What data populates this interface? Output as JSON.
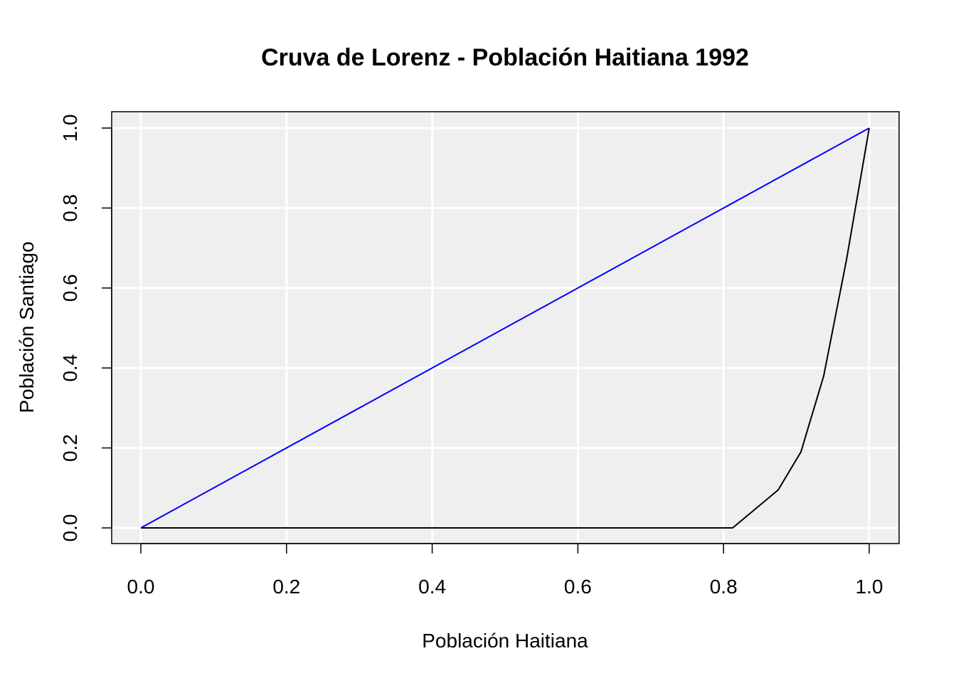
{
  "chart_data": {
    "type": "line",
    "title": "Cruva de Lorenz - Población Haitiana 1992",
    "xlabel": "Población Haitiana",
    "ylabel": "Población Santiago",
    "xlim": [
      0,
      1
    ],
    "ylim": [
      0,
      1
    ],
    "x_ticks": [
      "0.0",
      "0.2",
      "0.4",
      "0.6",
      "0.8",
      "1.0"
    ],
    "y_ticks": [
      "0.0",
      "0.2",
      "0.4",
      "0.6",
      "0.8",
      "1.0"
    ],
    "grid": true,
    "background_color": "#efefef",
    "grid_color": "#ffffff",
    "legend": "none",
    "series": [
      {
        "color": "#000000",
        "x": [
          0.0,
          0.03125,
          0.8125,
          0.875,
          0.90625,
          0.9375,
          0.96875,
          1.0
        ],
        "y": [
          0.0,
          0.0,
          0.0,
          0.095,
          0.19,
          0.38,
          0.67,
          1.0
        ]
      },
      {
        "color": "#0000ff",
        "x": [
          0.0,
          1.0
        ],
        "y": [
          0.0,
          1.0
        ]
      }
    ]
  }
}
